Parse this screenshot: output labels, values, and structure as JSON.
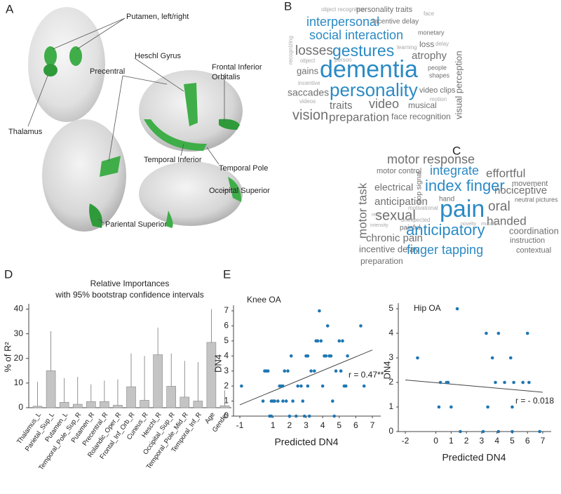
{
  "panel_labels": [
    "A",
    "B",
    "C",
    "D",
    "E"
  ],
  "brain_labels": [
    "Putamen, left/right",
    "Thalamus",
    "Heschl Gyrus",
    "Frontal Inferior",
    "Orbitalis",
    "Precentral",
    "Temporal Inferior",
    "Temporal Pole",
    "Occipital Superior",
    "Pariental Superior"
  ],
  "word_cloud_b": [
    "object recognition",
    "personality traits",
    "interpersonal",
    "incentive delay",
    "face",
    "social interaction",
    "monetary",
    "losses",
    "gestures",
    "learning",
    "loss",
    "delay",
    "atrophy",
    "visual perception",
    "object",
    "person",
    "gains",
    "dementia",
    "people",
    "shapes",
    "incentive",
    "personality",
    "video clips",
    "saccades",
    "videos",
    "motion",
    "traits",
    "video",
    "musical",
    "vision",
    "preparation",
    "face recognition",
    "recognizing"
  ],
  "word_cloud_c": [
    "motor response",
    "integrate",
    "effortful",
    "motor task",
    "motor control",
    "stop signal",
    "electrical",
    "index finger",
    "movement",
    "nociceptive",
    "anticipation",
    "hand",
    "pain",
    "oral",
    "neutral pictures",
    "sexual",
    "motivational",
    "handed",
    "unexpected",
    "painful",
    "rest",
    "intensity",
    "novelty",
    "muscle",
    "anticipatory",
    "coordination",
    "chronic pain",
    "instruction",
    "incentive delay",
    "finger tapping",
    "contextual",
    "preparation"
  ],
  "chart_data": [
    {
      "type": "bar",
      "title": "Relative Importances",
      "subtitle": "with 95% bootstrap confidence intervals",
      "y_label": "% of R²",
      "categories": [
        "Thalamus_L",
        "Parietal_Sup_L",
        "Putamen_L",
        "Temporal_Pole_Sup_R",
        "Putamen_R",
        "Precentral_R",
        "Rolandic_Oper_R",
        "Frontal_Inf_Orb_R",
        "Cuneus_R",
        "Heschl_R",
        "Occipital_Sup_R",
        "Temporal_Pole_Mid_R",
        "Temporal_Inf_R",
        "Age",
        "Gender"
      ],
      "values": [
        0.6,
        15,
        2.2,
        1.4,
        2.5,
        2.5,
        1.0,
        8.5,
        3.0,
        21.5,
        8.7,
        4.3,
        2.7,
        26.5,
        0.8
      ],
      "ci_upper": [
        10.5,
        31,
        12,
        12.5,
        9.5,
        11,
        11.5,
        22,
        21,
        32.5,
        22,
        19,
        18.5,
        40,
        7
      ],
      "color": "#c4c4c4",
      "ylim": [
        0,
        41
      ],
      "yticks": [
        0,
        10,
        20,
        30,
        40
      ]
    },
    {
      "type": "scatter",
      "title": "Knee OA",
      "x_label": "Predicted DN4",
      "y_label": "DN4",
      "annotation": "r = 0.47**",
      "color": "#1f77b4",
      "x": [
        -0.9,
        0.4,
        0.5,
        0.6,
        0.7,
        0.8,
        0.9,
        0.9,
        1.0,
        1.1,
        1.3,
        1.4,
        1.5,
        1.6,
        1.6,
        1.7,
        1.8,
        1.9,
        2.0,
        2.1,
        2.2,
        2.4,
        2.5,
        2.7,
        2.8,
        2.9,
        3.0,
        3.1,
        3.1,
        3.2,
        3.3,
        3.5,
        3.6,
        3.7,
        3.8,
        3.9,
        4.0,
        4.1,
        4.2,
        4.3,
        4.4,
        4.5,
        4.6,
        4.7,
        4.8,
        5.0,
        5.1,
        5.2,
        5.3,
        5.4,
        5.5,
        6.3,
        6.5
      ],
      "values": [
        2,
        1,
        3,
        3,
        3,
        0,
        1,
        0,
        1,
        1,
        1,
        2,
        2,
        2,
        1,
        3,
        1,
        3,
        0,
        4,
        1,
        0,
        2,
        2,
        1,
        0,
        4,
        4,
        2,
        0,
        3,
        3,
        5,
        5,
        7,
        5,
        2,
        4,
        4,
        6,
        4,
        4,
        1,
        0,
        3,
        5,
        3,
        5,
        2,
        2,
        4,
        6,
        2
      ],
      "fit_line": {
        "x": [
          -1,
          7
        ],
        "y": [
          0.75,
          4.4
        ]
      },
      "xlim": [
        -1,
        7
      ],
      "ylim": [
        0,
        7
      ],
      "xticks": [
        -1,
        1,
        2,
        3,
        4,
        5,
        6,
        7
      ],
      "yticks": [
        0,
        1,
        2,
        3,
        4,
        5,
        6,
        7
      ]
    },
    {
      "type": "scatter",
      "title": "Hip OA",
      "x_label": "Predicted DN4",
      "y_label": "DN4",
      "annotation": "r = - 0.018",
      "color": "#1f77b4",
      "x": [
        -1.2,
        0.2,
        0.3,
        0.7,
        0.8,
        1.0,
        1.4,
        1.6,
        3.1,
        3.3,
        3.4,
        3.7,
        3.9,
        4.1,
        4.1,
        4.5,
        4.9,
        5.0,
        5.0,
        5.1,
        5.7,
        6.0,
        6.1,
        6.8
      ],
      "values": [
        3,
        1,
        2,
        2,
        2,
        1,
        5,
        0,
        0,
        4,
        1,
        3,
        2,
        4,
        0,
        2,
        3,
        1,
        0,
        2,
        2,
        4,
        2,
        0
      ],
      "fit_line": {
        "x": [
          -2,
          7
        ],
        "y": [
          2.1,
          1.6
        ]
      },
      "xlim": [
        -2,
        7
      ],
      "ylim": [
        0,
        5
      ],
      "xticks": [
        -2,
        0,
        1,
        2,
        3,
        4,
        5,
        6,
        7
      ],
      "yticks": [
        0,
        1,
        2,
        3,
        4,
        5
      ]
    }
  ]
}
